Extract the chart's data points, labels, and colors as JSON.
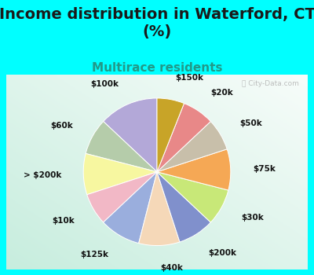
{
  "title": "Income distribution in Waterford, CT\n(%)",
  "subtitle": "Multirace residents",
  "background_cyan": "#00FFFF",
  "background_chart_color": "#d4ede8",
  "labels": [
    "$100k",
    "$60k",
    "> $200k",
    "$10k",
    "$125k",
    "$40k",
    "$200k",
    "$30k",
    "$75k",
    "$50k",
    "$20k",
    "$150k"
  ],
  "values": [
    13,
    8,
    9,
    7,
    9,
    9,
    8,
    8,
    9,
    7,
    7,
    6
  ],
  "colors": [
    "#b3a8d8",
    "#b5ccaa",
    "#f7f7a0",
    "#f2b8c6",
    "#9aaedd",
    "#f5d8b8",
    "#8090cc",
    "#c8e878",
    "#f5a855",
    "#c8bfaa",
    "#e88888",
    "#c8a428"
  ],
  "startangle": 90,
  "title_fontsize": 14,
  "subtitle_fontsize": 11,
  "label_fontsize": 7.5,
  "watermark": "City-Data.com"
}
